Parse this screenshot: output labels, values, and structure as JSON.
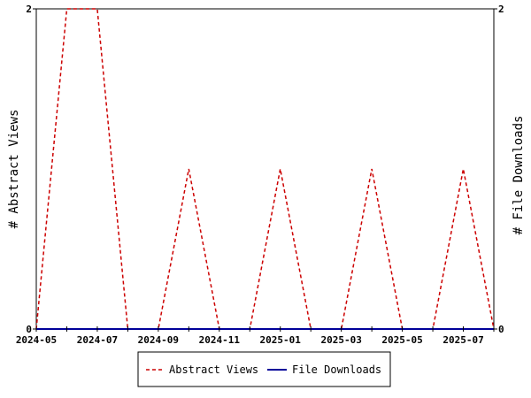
{
  "chart_data": {
    "type": "line",
    "x_months": [
      "2024-05",
      "2024-06",
      "2024-07",
      "2024-08",
      "2024-09",
      "2024-10",
      "2024-11",
      "2024-12",
      "2025-01",
      "2025-02",
      "2025-03",
      "2025-04",
      "2025-05",
      "2025-06",
      "2025-07",
      "2025-08"
    ],
    "x_tick_labels": [
      "2024-05",
      "2024-07",
      "2024-09",
      "2024-11",
      "2025-01",
      "2025-03",
      "2025-05",
      "2025-07"
    ],
    "series": [
      {
        "name": "Abstract Views",
        "values": [
          0,
          2,
          2,
          0,
          0,
          1,
          0,
          0,
          1,
          0,
          0,
          1,
          0,
          0,
          1,
          0
        ],
        "color": "#cc0000",
        "dash": "dashed"
      },
      {
        "name": "File Downloads",
        "values": [
          0,
          0,
          0,
          0,
          0,
          0,
          0,
          0,
          0,
          0,
          0,
          0,
          0,
          0,
          0,
          0
        ],
        "color": "#000099",
        "dash": "solid"
      }
    ],
    "ylabel_left": "# Abstract Views",
    "ylabel_right": "# File Downloads",
    "ylim_left": [
      0,
      2
    ],
    "ylim_right": [
      0,
      2
    ],
    "y_tick_labels_left": [
      "0",
      "2"
    ],
    "y_tick_labels_right": [
      "0",
      "2"
    ],
    "grid": false,
    "legend_position": "bottom"
  }
}
